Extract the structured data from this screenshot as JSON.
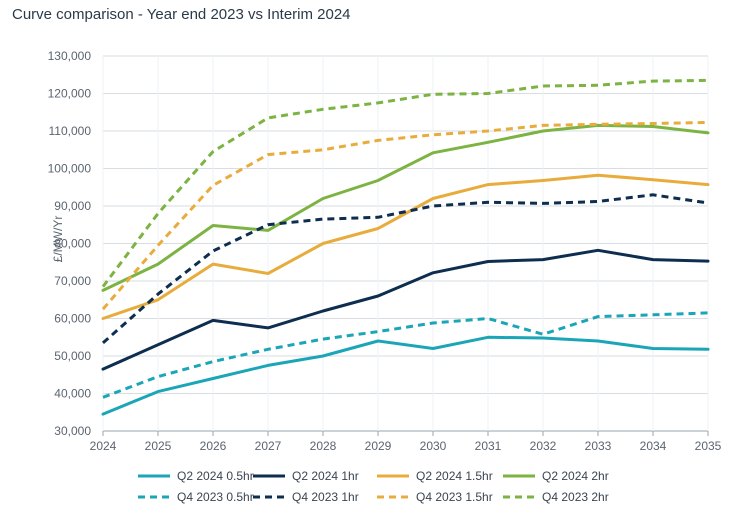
{
  "chart_data": {
    "type": "line",
    "title": "Curve comparison - Year end 2023 vs Interim 2024",
    "xlabel": "",
    "ylabel": "£/MW/Yr",
    "x": [
      "2024",
      "2025",
      "2026",
      "2027",
      "2028",
      "2029",
      "2030",
      "2031",
      "2032",
      "2033",
      "2034",
      "2035"
    ],
    "ylim": [
      30000,
      130000
    ],
    "yticks": [
      30000,
      40000,
      50000,
      60000,
      70000,
      80000,
      90000,
      100000,
      110000,
      120000,
      130000
    ],
    "ytick_labels": [
      "30,000",
      "40,000",
      "50,000",
      "60,000",
      "70,000",
      "80,000",
      "90,000",
      "100,000",
      "110,000",
      "120,000",
      "130,000"
    ],
    "grid": "horizontal",
    "legend_position": "bottom",
    "series": [
      {
        "name": "Q2 2024 0.5hr",
        "color": "#1aa6b7",
        "style": "solid",
        "values": [
          34500,
          40500,
          44000,
          47500,
          50000,
          54000,
          52000,
          55000,
          54800,
          54000,
          52000,
          51800
        ]
      },
      {
        "name": "Q2 2024 1hr",
        "color": "#0d2e4e",
        "style": "solid",
        "values": [
          46500,
          53000,
          59500,
          57500,
          62000,
          66000,
          72200,
          75200,
          75700,
          78200,
          75700,
          75300
        ]
      },
      {
        "name": "Q2 2024 1.5hr",
        "color": "#e8ac3c",
        "style": "solid",
        "values": [
          60000,
          65000,
          74500,
          72000,
          80000,
          84000,
          92000,
          95700,
          96800,
          98200,
          97000,
          95700
        ]
      },
      {
        "name": "Q2 2024 2hr",
        "color": "#7cb342",
        "style": "solid",
        "values": [
          67500,
          74500,
          84800,
          83500,
          92000,
          96800,
          104200,
          107000,
          110000,
          111500,
          111200,
          109500
        ]
      },
      {
        "name": "Q4 2023 0.5hr",
        "color": "#1aa6b7",
        "style": "dashed",
        "values": [
          39000,
          44500,
          48500,
          51800,
          54500,
          56500,
          58800,
          60000,
          55800,
          60500,
          61000,
          61500
        ]
      },
      {
        "name": "Q4 2023 1hr",
        "color": "#0d2e4e",
        "style": "dashed",
        "values": [
          53500,
          66500,
          78000,
          85000,
          86500,
          87000,
          90000,
          91000,
          90700,
          91200,
          93000,
          90800
        ]
      },
      {
        "name": "Q4 2023 1.5hr",
        "color": "#e8ac3c",
        "style": "dashed",
        "values": [
          62500,
          79500,
          95500,
          103700,
          105000,
          107500,
          109000,
          110000,
          111500,
          111800,
          112000,
          112300
        ]
      },
      {
        "name": "Q4 2023 2hr",
        "color": "#7cb342",
        "style": "dashed",
        "values": [
          68500,
          88000,
          104500,
          113500,
          115800,
          117500,
          119800,
          120000,
          122000,
          122200,
          123300,
          123500
        ]
      }
    ]
  }
}
